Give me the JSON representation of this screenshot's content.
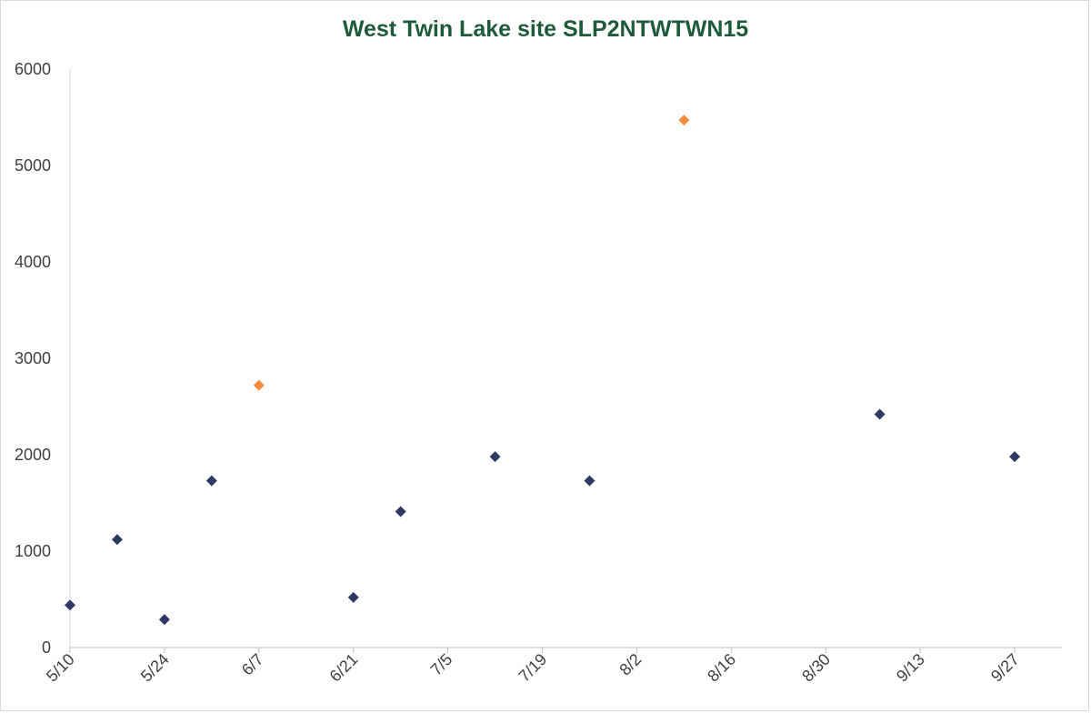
{
  "chart_data": {
    "type": "scatter",
    "title": "West Twin Lake site SLP2NTWTWN15",
    "xlabel": "",
    "ylabel": "",
    "ylim": [
      0,
      6000
    ],
    "yticks": [
      0,
      1000,
      2000,
      3000,
      4000,
      5000,
      6000
    ],
    "xlim": [
      "5/10",
      "10/4"
    ],
    "xtick_labels": [
      "5/10",
      "5/24",
      "6/7",
      "6/21",
      "7/5",
      "7/19",
      "8/2",
      "8/16",
      "8/30",
      "9/13",
      "9/27"
    ],
    "grid": false,
    "legend": "none",
    "colors": {
      "normal": "#2e3a63",
      "highlight": "#f58b3c"
    },
    "series": [
      {
        "color_key": "normal",
        "points": [
          {
            "x": "5/10",
            "y": 440
          },
          {
            "x": "5/17",
            "y": 1120
          },
          {
            "x": "5/24",
            "y": 290
          },
          {
            "x": "5/31",
            "y": 1730
          },
          {
            "x": "6/21",
            "y": 520
          },
          {
            "x": "6/28",
            "y": 1410
          },
          {
            "x": "7/12",
            "y": 1980
          },
          {
            "x": "7/26",
            "y": 1730
          },
          {
            "x": "9/7",
            "y": 2420
          },
          {
            "x": "9/27",
            "y": 1980
          }
        ]
      },
      {
        "color_key": "highlight",
        "points": [
          {
            "x": "6/7",
            "y": 2720
          },
          {
            "x": "8/9",
            "y": 5470
          }
        ]
      }
    ]
  }
}
